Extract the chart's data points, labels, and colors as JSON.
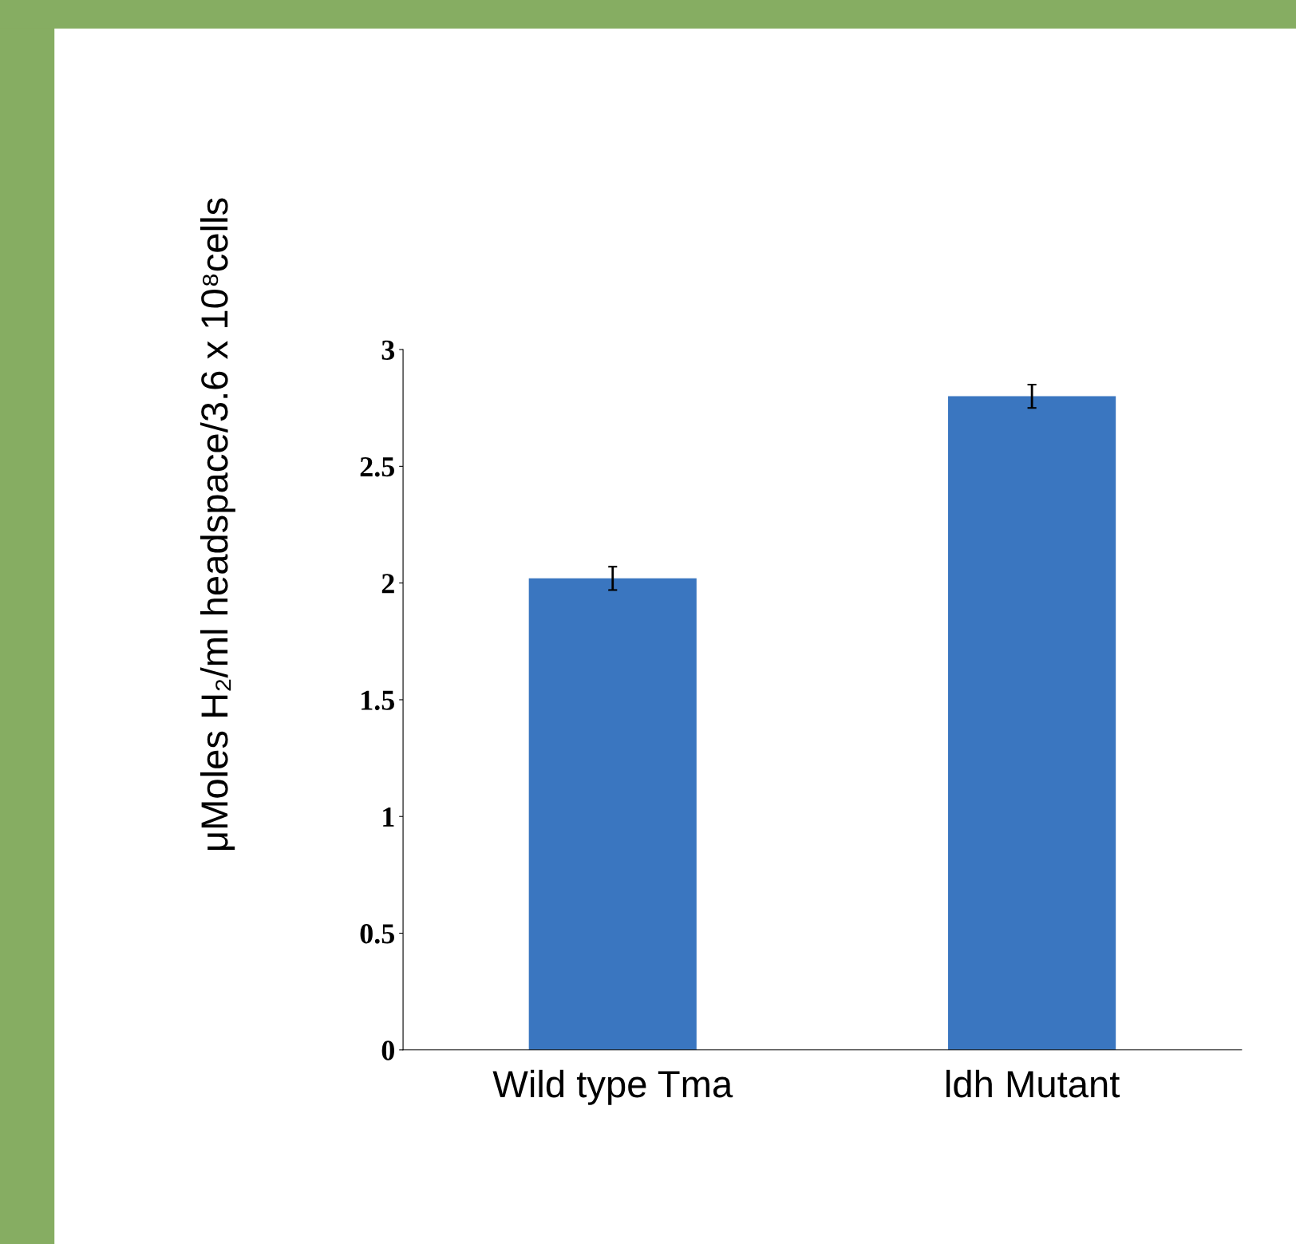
{
  "chart_data": {
    "type": "bar",
    "ylabel": "μMoles H₂/ml headspace/3.6 x 10⁸cells",
    "categories": [
      "Wild type Tma",
      "ldh Mutant"
    ],
    "values": [
      2.02,
      2.8
    ],
    "errors": [
      0.05,
      0.05
    ],
    "color": "#3a76c0",
    "ylim": [
      0,
      3
    ],
    "yticks": [
      0,
      {
        "value": 0.5,
        "label": "0.5"
      },
      1,
      {
        "value": 1.5,
        "label": "1.5"
      },
      2,
      {
        "value": 2.5,
        "label": "2.5"
      },
      3
    ],
    "grid": false
  }
}
